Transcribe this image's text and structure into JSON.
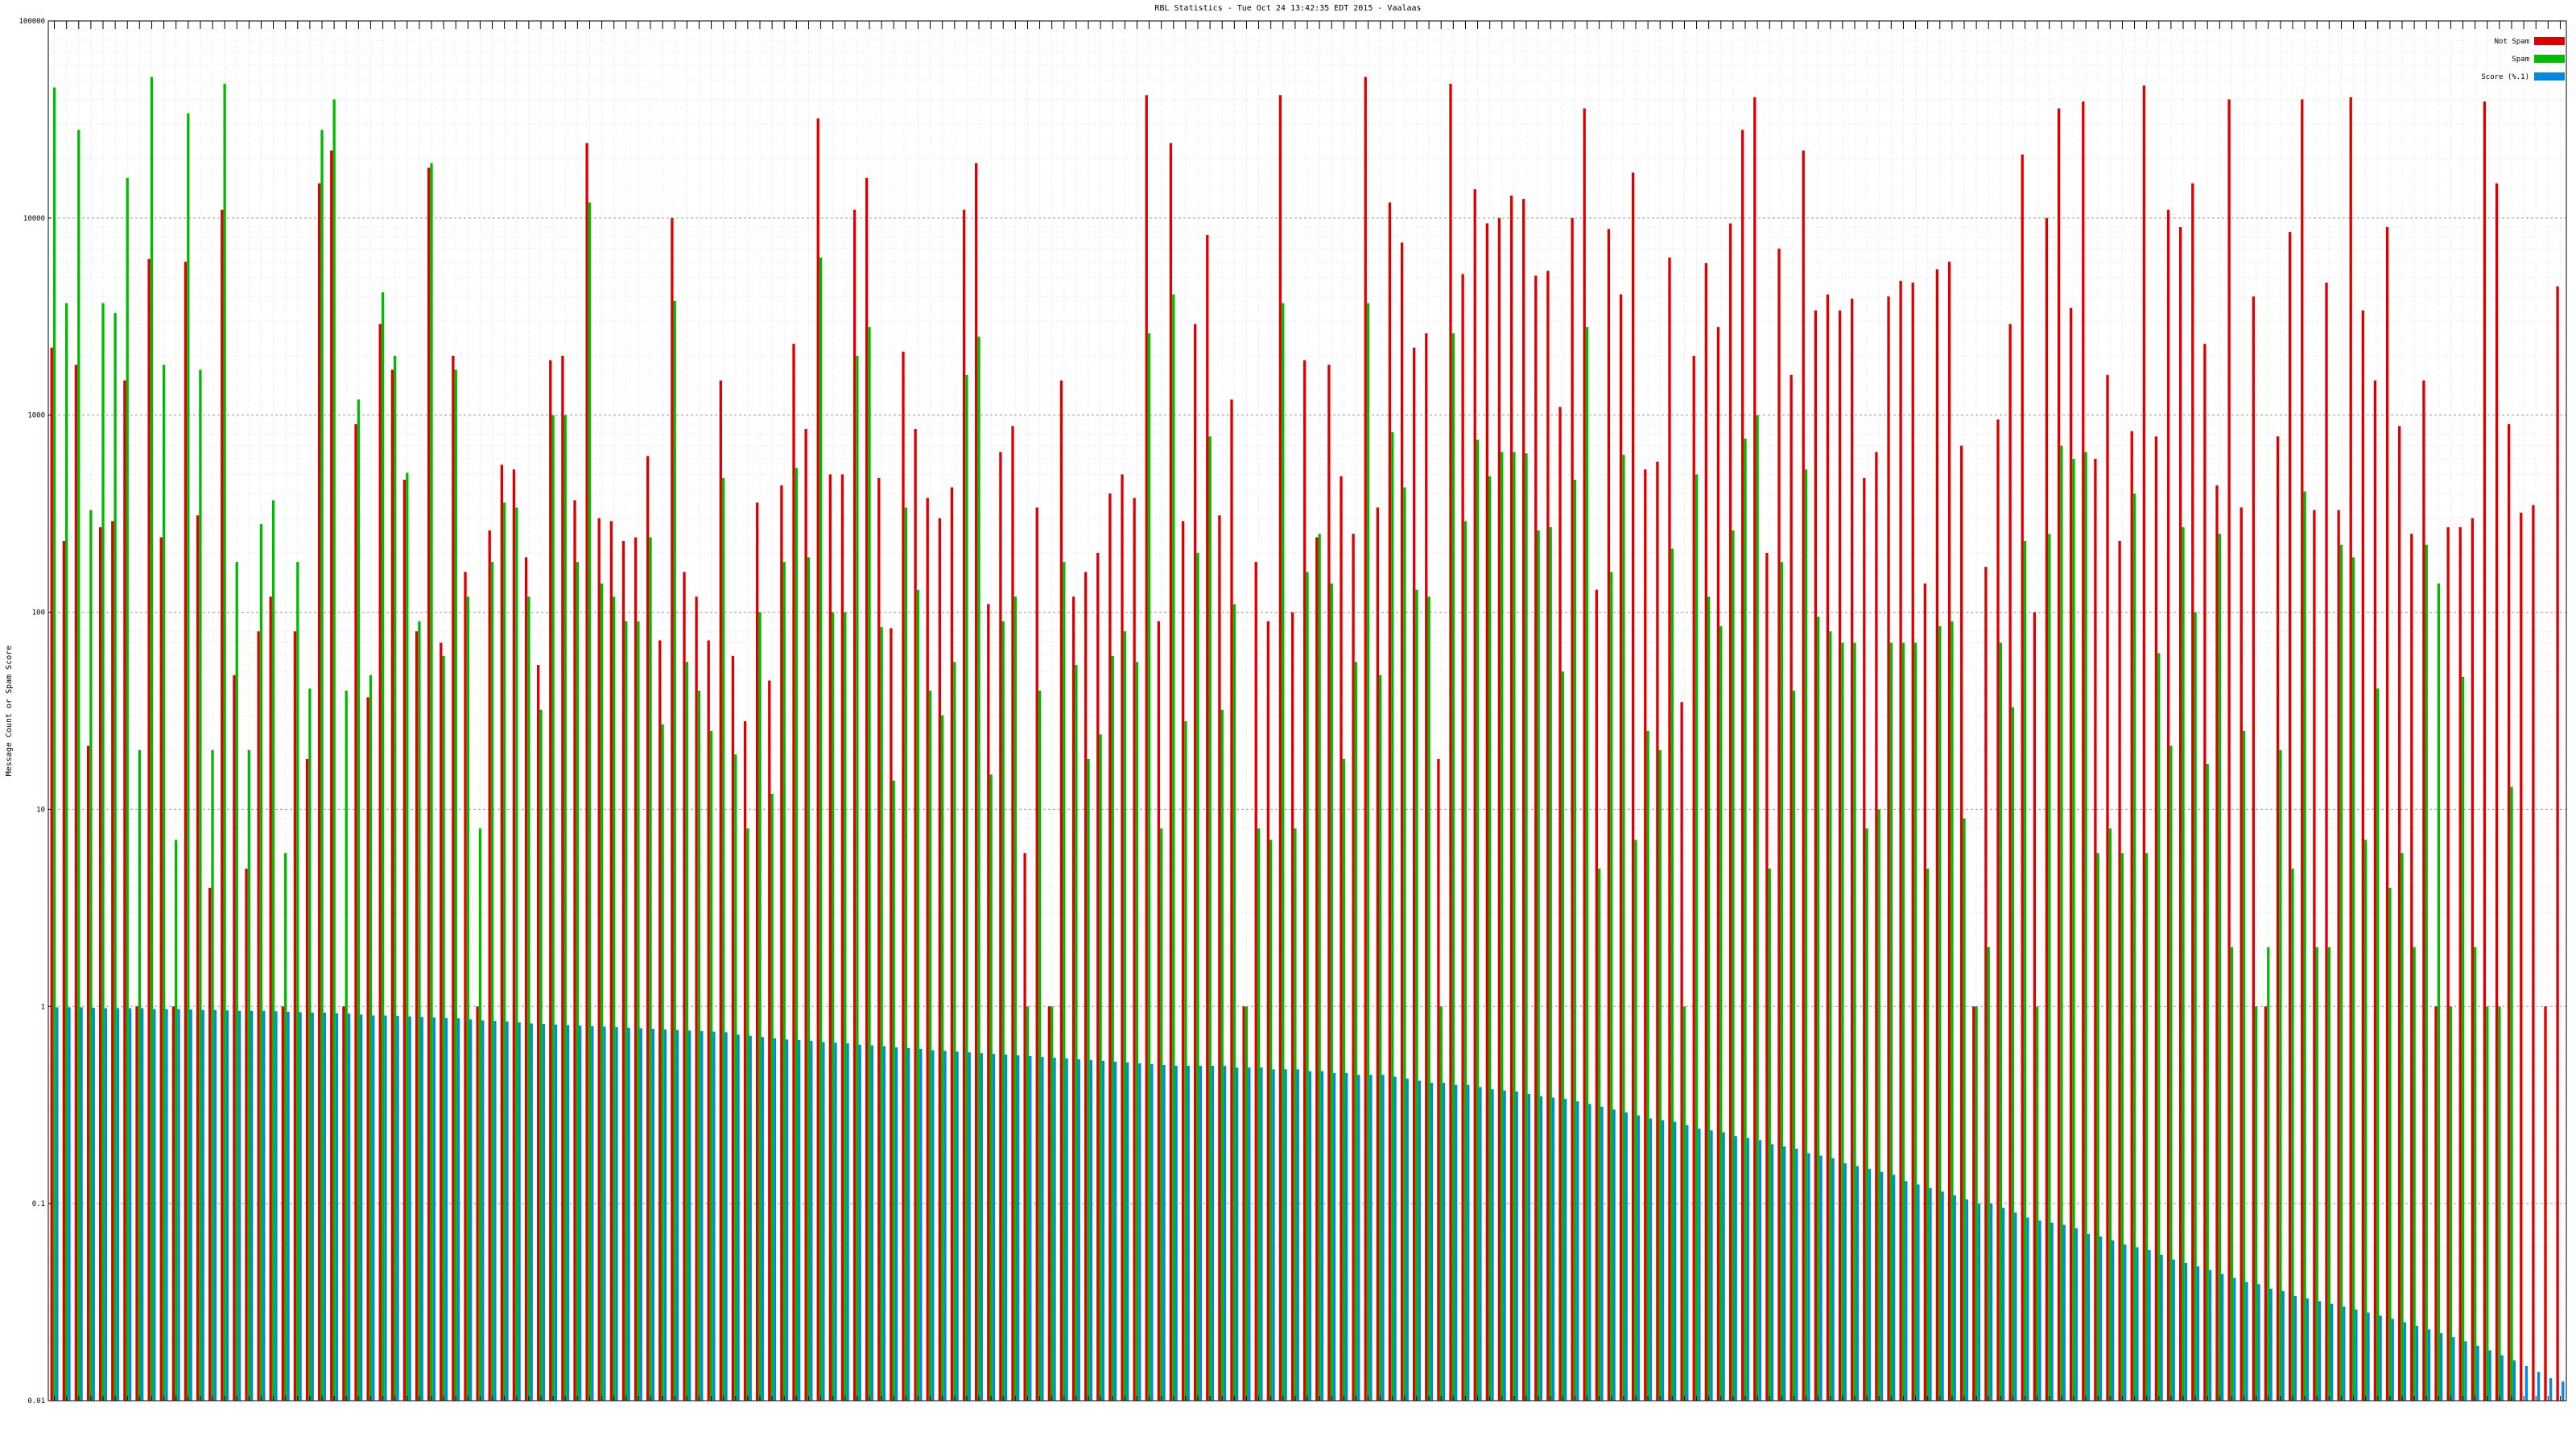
{
  "chart_data": {
    "type": "bar",
    "title": "RBL Statistics - Tue Oct 24 13:42:35 EDT 2015 - Vaalaas",
    "xlabel": "",
    "ylabel": "Message Count or Spam Score",
    "y_scale": "log",
    "ylim": [
      0.01,
      100000
    ],
    "y_ticks": [
      {
        "value": 0.01,
        "label": "0.01"
      },
      {
        "value": 0.1,
        "label": "0.1"
      },
      {
        "value": 1,
        "label": "1"
      },
      {
        "value": 10,
        "label": "10"
      },
      {
        "value": 100,
        "label": "100"
      },
      {
        "value": 1000,
        "label": "1000"
      },
      {
        "value": 10000,
        "label": "10000"
      },
      {
        "value": 100000,
        "label": "100000"
      }
    ],
    "grid": true,
    "legend_placement": "top-right",
    "colors": {
      "not_spam": "#dd0000",
      "spam": "#00bb00",
      "score": "#0088dd"
    },
    "series": [
      {
        "name": "Not Spam",
        "color": "#dd0000",
        "values": [
          2200,
          230,
          1800,
          21,
          270,
          290,
          1500,
          1,
          6200,
          240,
          1,
          6000,
          310,
          4,
          11000,
          48,
          5,
          80,
          120,
          1,
          80,
          18,
          15000,
          22000,
          1,
          900,
          37,
          2900,
          1700,
          470,
          80,
          18000,
          70,
          2000,
          160,
          1,
          260,
          560,
          530,
          190,
          54,
          1900,
          2000,
          370,
          24000,
          300,
          290,
          230,
          240,
          620,
          72,
          10000,
          160,
          120,
          72,
          1500,
          60,
          28,
          360,
          45,
          440,
          2300,
          850,
          32000,
          500,
          500,
          11000,
          16000,
          480,
          83,
          2100,
          850,
          380,
          300,
          430,
          11000,
          19000,
          110,
          650,
          880,
          6,
          340,
          1,
          1500,
          120,
          160,
          200,
          400,
          500,
          380,
          42000,
          90,
          24000,
          290,
          2900,
          8200,
          310,
          1200,
          1,
          180,
          90,
          42000,
          100,
          1900,
          240,
          1800,
          490,
          250,
          52000,
          340,
          12000,
          7500,
          2200,
          2600,
          18,
          48000,
          5200,
          14000,
          9400,
          10000,
          13000,
          12500,
          5100,
          5400,
          1100,
          10000,
          36000,
          130,
          8800,
          4100,
          17000,
          530,
          580,
          6300,
          35,
          2000,
          5900,
          2800,
          9400,
          28000,
          41000,
          200,
          7000,
          1600,
          22000,
          3400,
          4100,
          3400,
          3900,
          480,
          650,
          4000,
          4800,
          4700,
          140,
          5500,
          6000,
          700,
          1,
          170,
          950,
          2900,
          21000,
          100,
          10000,
          36000,
          3500,
          39000,
          600,
          1600,
          230,
          830,
          47000,
          780,
          11000,
          9000,
          15000,
          2300,
          440,
          40000,
          340,
          4000,
          1,
          780,
          8500,
          40000,
          330,
          4700,
          330,
          41000,
          3400,
          1500,
          9000,
          880,
          250,
          1500,
          1,
          270,
          270,
          300,
          39000,
          15000,
          900,
          320,
          350,
          1,
          4500
        ]
      },
      {
        "name": "Spam",
        "color": "#00bb00",
        "values": [
          46000,
          3700,
          28000,
          330,
          3700,
          3300,
          16000,
          20,
          52000,
          1800,
          7,
          34000,
          1700,
          20,
          48000,
          180,
          20,
          280,
          370,
          6,
          180,
          41,
          28000,
          40000,
          40,
          1200,
          48,
          4200,
          2000,
          510,
          90,
          19000,
          60,
          1700,
          120,
          8,
          180,
          360,
          340,
          120,
          32,
          1000,
          1000,
          180,
          12000,
          140,
          120,
          90,
          90,
          240,
          27,
          3800,
          56,
          40,
          25,
          480,
          19,
          8,
          100,
          12,
          180,
          540,
          190,
          6300,
          100,
          100,
          2000,
          2800,
          84,
          14,
          340,
          130,
          40,
          30,
          56,
          1600,
          2500,
          15,
          90,
          120,
          1,
          40,
          1,
          180,
          54,
          18,
          24,
          60,
          80,
          56,
          2600,
          8,
          4100,
          28,
          200,
          780,
          32,
          110,
          1,
          8,
          7,
          3700,
          8,
          160,
          250,
          140,
          18,
          56,
          3700,
          48,
          820,
          430,
          130,
          120,
          1,
          2600,
          290,
          750,
          490,
          650,
          650,
          640,
          260,
          270,
          50,
          470,
          2800,
          5,
          160,
          630,
          7,
          25,
          20,
          210,
          1,
          500,
          120,
          85,
          260,
          760,
          1000,
          5,
          180,
          40,
          530,
          95,
          80,
          70,
          70,
          8,
          10,
          70,
          70,
          70,
          5,
          85,
          90,
          9,
          1,
          2,
          70,
          33,
          230,
          1,
          250,
          700,
          600,
          650,
          6,
          8,
          6,
          400,
          6,
          62,
          21,
          270,
          100,
          17,
          250,
          2,
          25,
          1,
          2,
          20,
          5,
          410,
          2,
          2,
          220,
          190,
          7,
          41,
          4,
          6,
          2,
          220,
          140,
          1,
          47,
          2,
          1,
          1,
          13
        ]
      },
      {
        "name": "Score (%.1)",
        "color": "#0088dd",
        "values": [
          0.99,
          0.99,
          0.99,
          0.985,
          0.98,
          0.98,
          0.98,
          0.98,
          0.97,
          0.97,
          0.97,
          0.965,
          0.96,
          0.96,
          0.955,
          0.95,
          0.95,
          0.95,
          0.945,
          0.94,
          0.935,
          0.93,
          0.93,
          0.925,
          0.92,
          0.91,
          0.9,
          0.9,
          0.895,
          0.89,
          0.885,
          0.88,
          0.875,
          0.87,
          0.86,
          0.85,
          0.845,
          0.84,
          0.83,
          0.82,
          0.815,
          0.81,
          0.805,
          0.8,
          0.795,
          0.79,
          0.785,
          0.78,
          0.775,
          0.77,
          0.765,
          0.76,
          0.755,
          0.75,
          0.745,
          0.74,
          0.72,
          0.71,
          0.7,
          0.69,
          0.68,
          0.675,
          0.67,
          0.66,
          0.655,
          0.65,
          0.64,
          0.635,
          0.63,
          0.62,
          0.615,
          0.61,
          0.6,
          0.595,
          0.59,
          0.585,
          0.58,
          0.575,
          0.57,
          0.565,
          0.56,
          0.555,
          0.55,
          0.545,
          0.54,
          0.535,
          0.53,
          0.525,
          0.52,
          0.515,
          0.51,
          0.505,
          0.5,
          0.5,
          0.5,
          0.5,
          0.5,
          0.49,
          0.49,
          0.49,
          0.48,
          0.48,
          0.48,
          0.47,
          0.47,
          0.46,
          0.46,
          0.45,
          0.45,
          0.45,
          0.44,
          0.43,
          0.42,
          0.41,
          0.41,
          0.4,
          0.4,
          0.39,
          0.38,
          0.375,
          0.37,
          0.36,
          0.35,
          0.345,
          0.34,
          0.33,
          0.32,
          0.31,
          0.3,
          0.29,
          0.28,
          0.27,
          0.265,
          0.26,
          0.25,
          0.24,
          0.235,
          0.23,
          0.22,
          0.215,
          0.21,
          0.2,
          0.195,
          0.19,
          0.18,
          0.175,
          0.17,
          0.16,
          0.155,
          0.15,
          0.145,
          0.14,
          0.13,
          0.125,
          0.12,
          0.115,
          0.11,
          0.105,
          0.1,
          0.1,
          0.095,
          0.09,
          0.085,
          0.082,
          0.08,
          0.078,
          0.075,
          0.07,
          0.068,
          0.065,
          0.062,
          0.06,
          0.058,
          0.055,
          0.052,
          0.05,
          0.048,
          0.046,
          0.044,
          0.042,
          0.04,
          0.039,
          0.037,
          0.036,
          0.034,
          0.033,
          0.032,
          0.031,
          0.03,
          0.029,
          0.028,
          0.027,
          0.026,
          0.025,
          0.024,
          0.023,
          0.022,
          0.021,
          0.02,
          0.019,
          0.018,
          0.017,
          0.016,
          0.015,
          0.014,
          0.013,
          0.0125,
          0.012,
          0.0115,
          0.011,
          0.0105,
          0.0102,
          0.01
        ]
      }
    ]
  }
}
